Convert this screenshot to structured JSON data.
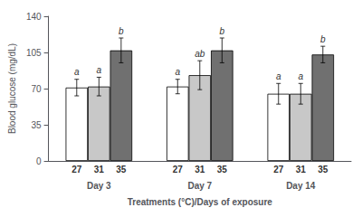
{
  "chart_data": {
    "type": "bar",
    "categories": [
      "Day 3",
      "Day 7",
      "Day 14"
    ],
    "series": [
      {
        "name": "27",
        "color": "#ffffff",
        "values": [
          71,
          72,
          65
        ],
        "errors": [
          8,
          7,
          10
        ],
        "letters": [
          "a",
          "a",
          "a"
        ]
      },
      {
        "name": "31",
        "color": "#c8c8c8",
        "values": [
          72,
          83,
          65
        ],
        "errors": [
          9,
          14,
          10
        ],
        "letters": [
          "a",
          "ab",
          "a"
        ]
      },
      {
        "name": "35",
        "color": "#707070",
        "values": [
          107,
          107,
          103
        ],
        "errors": [
          12,
          12,
          8
        ],
        "letters": [
          "b",
          "b",
          "b"
        ]
      }
    ],
    "xlabel": "Treatments (°C)/Days of exposure",
    "ylabel": "Blood glucose (mg/dL)",
    "ylim": [
      0,
      140
    ],
    "yticks": [
      0,
      35,
      70,
      105,
      140
    ],
    "grid": false
  }
}
